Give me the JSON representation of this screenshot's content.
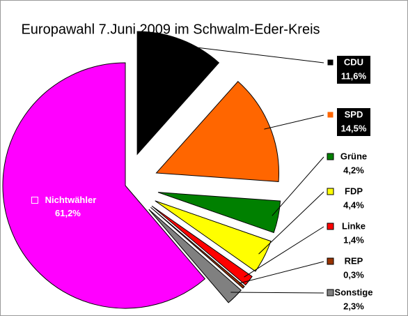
{
  "chart_data": {
    "type": "pie",
    "title": "Europawahl 7.Juni 2009 im Schwalm-Eder-Kreis",
    "categories": [
      "CDU",
      "SPD",
      "Grüne",
      "FDP",
      "Linke",
      "REP",
      "Sonstige",
      "Nichtwähler"
    ],
    "values": [
      11.6,
      14.5,
      4.2,
      4.4,
      1.4,
      0.3,
      2.3,
      61.2
    ],
    "value_labels": [
      "11,6%",
      "14,5%",
      "4,2%",
      "4,4%",
      "1,4%",
      "0,3%",
      "2,3%",
      "61,2%"
    ],
    "colors": [
      "#000000",
      "#ff6600",
      "#008000",
      "#ffff00",
      "#ff0000",
      "#993300",
      "#808080",
      "#ff00ff"
    ]
  }
}
